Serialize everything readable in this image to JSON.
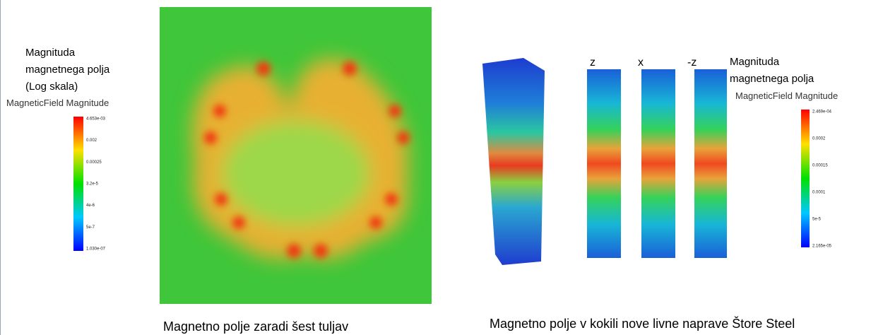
{
  "left_panel": {
    "legend_title": [
      "Magnituda",
      "magnetnega polja",
      "(Log skala)"
    ],
    "field_label": "MagneticField Magnitude",
    "colorbar_labels": [
      "4.653e-03",
      "0.002",
      "0.00025",
      "3.2e-5",
      "4e-6",
      "5e-7",
      "1.030e-07"
    ],
    "caption": "Magnetno polje zaradi šest tuljav"
  },
  "right_panel": {
    "view_labels": [
      "z",
      "x",
      "-z"
    ],
    "legend_title": [
      "Magnituda",
      "magnetnega polja"
    ],
    "field_label": "MagneticField Magnitude",
    "colorbar_labels": [
      "2.469e-04",
      "0.0002",
      "0.00015",
      "0.0001",
      "5e-5",
      "2.165e-05"
    ],
    "caption": "Magnetno polje v kokili nove livne naprave Štore Steel"
  }
}
